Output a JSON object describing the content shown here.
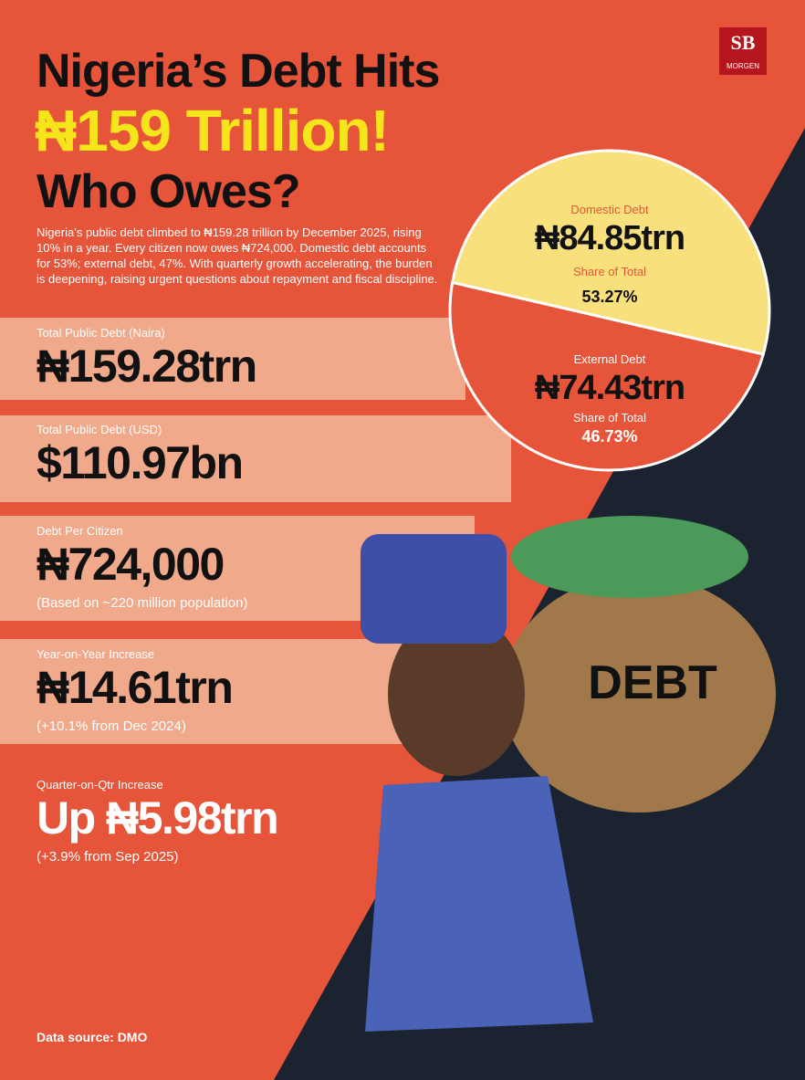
{
  "brand": {
    "mark": "SB",
    "name": "MORGEN"
  },
  "header": {
    "line1": "Nigeria’s Debt Hits",
    "line2": "₦159 Trillion!",
    "line3": "Who Owes?"
  },
  "summary": "Nigeria’s public debt climbed to ₦159.28 trillion by December 2025, rising 10% in a year. Every citizen now owes ₦724,000. Domestic debt accounts for 53%; external debt, 47%. With quarterly growth accelerating, the burden is deepening, raising urgent questions about repayment and fiscal discipline.",
  "stats": [
    {
      "label": "Total Public Debt (Naira)",
      "value": "₦159.28trn"
    },
    {
      "label": "Total Public Debt (USD)",
      "value": "$110.97bn"
    },
    {
      "label": "Debt Per Citizen",
      "value": "₦724,000",
      "note": "(Based on ~220 million population)"
    },
    {
      "label": "Year-on-Year Increase",
      "value": "₦14.61trn",
      "note": "(+10.1% from Dec 2024)"
    },
    {
      "label": "Quarter-on-Qtr Increase",
      "value": "Up ₦5.98trn",
      "note": "(+3.9% from Sep 2025)"
    }
  ],
  "chart_data": {
    "type": "pie",
    "categories": [
      "Domestic Debt",
      "External Debt"
    ],
    "amount_labels": [
      "₦84.85trn",
      "₦74.43trn"
    ],
    "share_title": "Share of Total",
    "values": [
      53.27,
      46.73
    ],
    "value_labels": [
      "53.27%",
      "46.73%"
    ],
    "colors": [
      "#f8e07c",
      "#e6553a"
    ]
  },
  "illustration": {
    "bag_label": "DEBT"
  },
  "source": "Data source: DMO"
}
